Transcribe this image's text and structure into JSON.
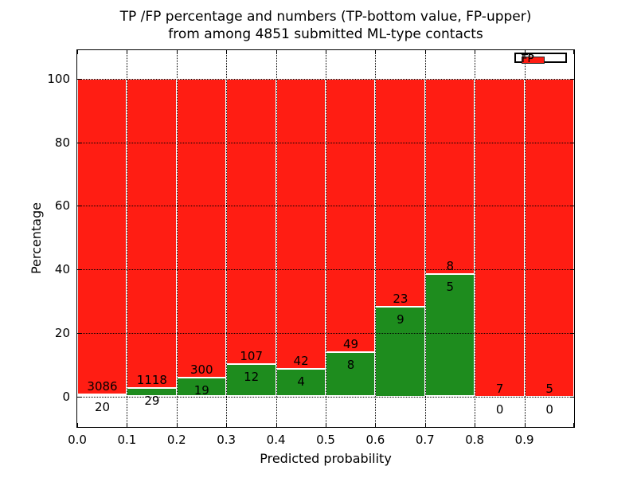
{
  "chart_data": {
    "type": "bar",
    "stacked": true,
    "normalized_to_percent": true,
    "title": "TP /FP percentage and numbers (TP-bottom value, FP-upper)",
    "subtitle": "from among 4851 submitted ML-type contacts",
    "xlabel": "Predicted probability",
    "ylabel": "Percentage",
    "x_tick_labels": [
      "0.0",
      "0.1",
      "0.2",
      "0.3",
      "0.4",
      "0.5",
      "0.6",
      "0.7",
      "0.8",
      "0.9"
    ],
    "y_tick_values": [
      0,
      20,
      40,
      60,
      80,
      100
    ],
    "ylim": [
      -10,
      109.3
    ],
    "xlim": [
      0.0,
      1.0
    ],
    "bin_width": 0.1,
    "categories": [
      "0.0-0.1",
      "0.1-0.2",
      "0.2-0.3",
      "0.3-0.4",
      "0.4-0.5",
      "0.5-0.6",
      "0.6-0.7",
      "0.7-0.8",
      "0.8-0.9",
      "0.9-1.0"
    ],
    "series": [
      {
        "name": "TP",
        "color": "#1e8c1e",
        "counts": [
          20,
          29,
          19,
          12,
          4,
          8,
          9,
          5,
          0,
          0
        ]
      },
      {
        "name": "FP",
        "color": "#ff1d13",
        "counts": [
          3086,
          1118,
          300,
          107,
          42,
          49,
          23,
          8,
          7,
          5
        ]
      }
    ],
    "bar_total_percent": 100,
    "grid": "dotted",
    "legend_position": "upper right"
  }
}
